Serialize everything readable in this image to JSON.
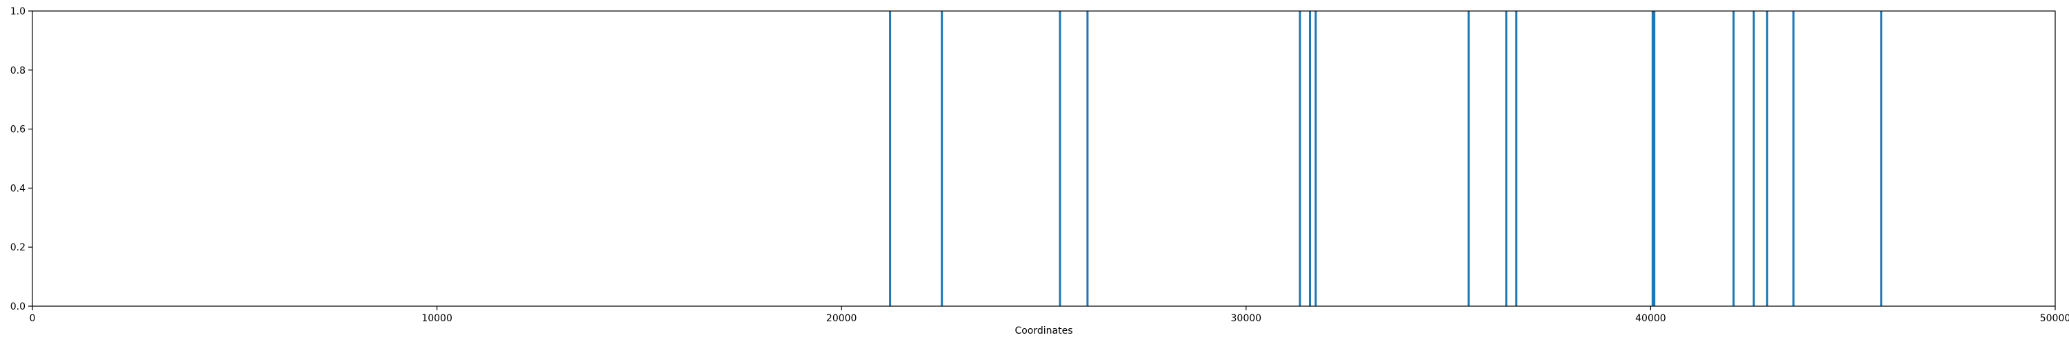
{
  "chart_data": {
    "type": "bar",
    "xlabel": "Coordinates",
    "ylabel": "",
    "xlim": [
      0,
      50000
    ],
    "ylim": [
      0.0,
      1.0
    ],
    "x_ticks": [
      0,
      10000,
      20000,
      30000,
      40000,
      50000
    ],
    "x_tick_labels": [
      "0",
      "10000",
      "20000",
      "30000",
      "40000",
      "50000"
    ],
    "y_ticks": [
      0.0,
      0.2,
      0.4,
      0.6,
      0.8,
      1.0
    ],
    "y_tick_labels": [
      "0.0",
      "0.2",
      "0.4",
      "0.6",
      "0.8",
      "1.0"
    ],
    "grid": false,
    "bar_color": "#1f77b4",
    "x": [
      21200,
      22480,
      25400,
      26080,
      31330,
      31580,
      31720,
      35500,
      36430,
      36680,
      40050,
      40090,
      42050,
      42550,
      42880,
      43530,
      45700
    ],
    "values": [
      1,
      1,
      1,
      1,
      1,
      1,
      1,
      1,
      1,
      1,
      1,
      1,
      1,
      1,
      1,
      1,
      1
    ]
  }
}
